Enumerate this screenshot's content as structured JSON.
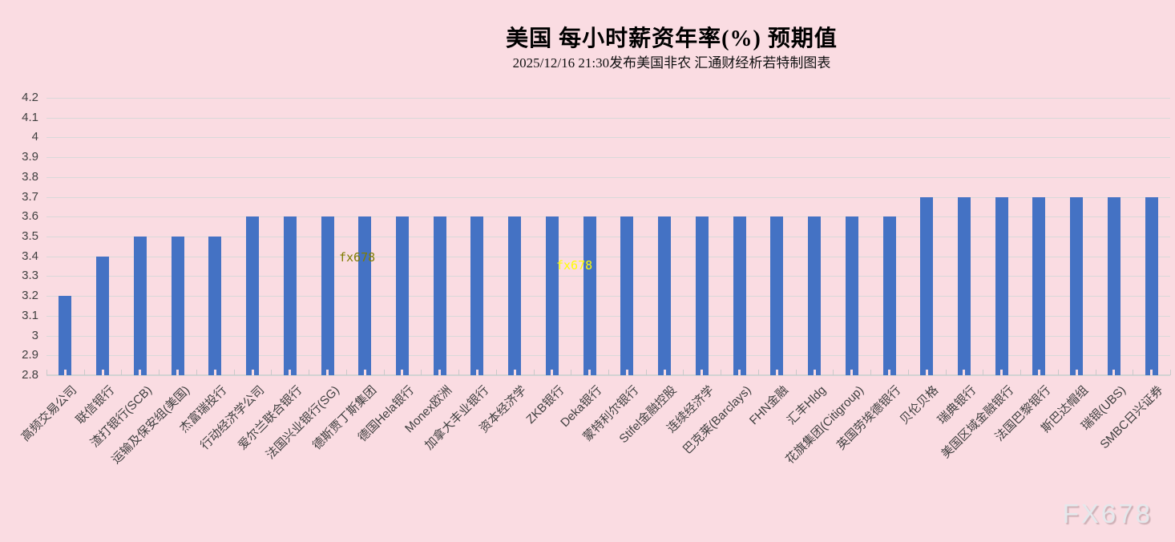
{
  "header": {
    "title": "美国 每小时薪资年率(%) 预期值",
    "subtitle": "2025/12/16 21:30发布美国非农 汇通财经析若特制图表"
  },
  "watermarks": {
    "inner_left": "fx678",
    "inner_middle": "fx678",
    "corner": "FX678"
  },
  "chart_data": {
    "type": "bar",
    "title": "美国 每小时薪资年率(%) 预期值",
    "subtitle": "2025/12/16 21:30发布美国非农 汇通财经析若特制图表",
    "xlabel": "",
    "ylabel": "",
    "ylim": [
      2.8,
      4.2
    ],
    "y_ticks": [
      "4.2",
      "4.1",
      "4",
      "3.9",
      "3.8",
      "3.7",
      "3.6",
      "3.5",
      "3.4",
      "3.3",
      "3.2",
      "3.1",
      "3",
      "2.9",
      "2.8"
    ],
    "grid": true,
    "legend": false,
    "bar_color": "#4472c4",
    "background_color": "#fadce2",
    "gridline_color": "#d9d9d9",
    "categories": [
      "高频交易公司",
      "联信银行",
      "渣打银行(SCB)",
      "运输及保安组(美国)",
      "杰富瑞投行",
      "行动经济学公司",
      "爱尔兰联合银行",
      "法国兴业银行(SG)",
      "德斯贾丁斯集团",
      "德国Hela银行",
      "Monex欧洲",
      "加拿大丰业银行",
      "资本经济学",
      "ZKB银行",
      "Deka银行",
      "蒙特利尔银行",
      "Stifel金融控股",
      "连续经济学",
      "巴克莱(Barclays)",
      "FHN金融",
      "汇丰Hldg",
      "花旗集团(Citigroup)",
      "英国劳埃德银行",
      "贝伦贝格",
      "瑞典银行",
      "美国区域金融银行",
      "法国巴黎银行",
      "斯巴达帽组",
      "瑞银(UBS)",
      "SMBC日兴证券"
    ],
    "values": [
      3.2,
      3.4,
      3.5,
      3.5,
      3.5,
      3.6,
      3.6,
      3.6,
      3.6,
      3.6,
      3.6,
      3.6,
      3.6,
      3.6,
      3.6,
      3.6,
      3.6,
      3.6,
      3.6,
      3.6,
      3.6,
      3.6,
      3.6,
      3.7,
      3.7,
      3.7,
      3.7,
      3.7,
      3.7,
      3.7
    ]
  }
}
